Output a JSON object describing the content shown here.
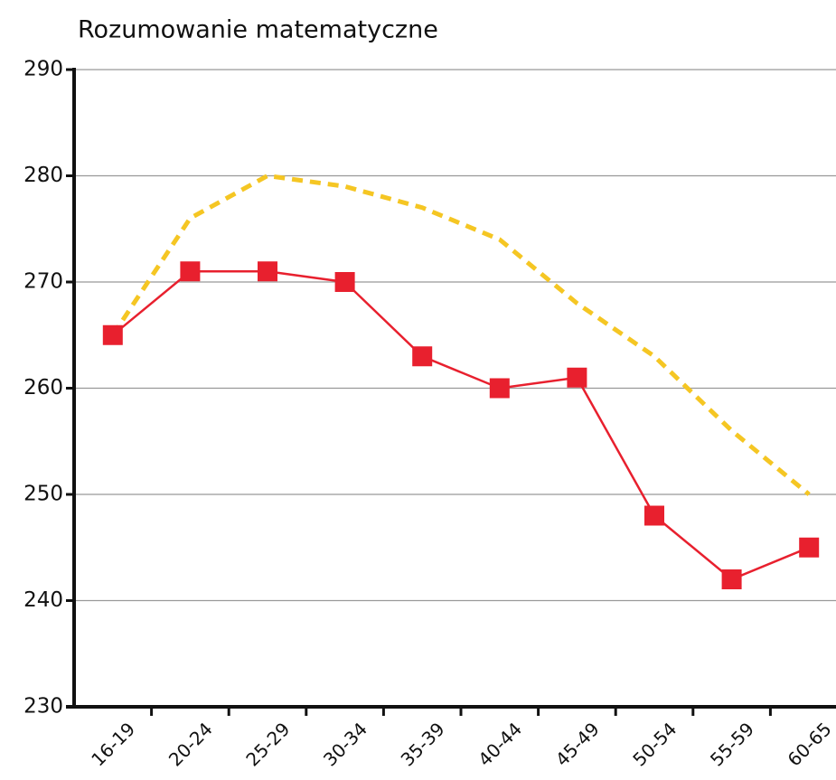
{
  "chart_data": {
    "type": "line",
    "title": "Rozumowanie matematyczne",
    "categories": [
      "16-19",
      "20-24",
      "25-29",
      "30-34",
      "35-39",
      "40-44",
      "45-49",
      "50-54",
      "55-59",
      "60-65"
    ],
    "series": [
      {
        "color": "#f5c623",
        "style": "dashed",
        "marker": "none",
        "values": [
          265,
          276,
          280,
          279,
          277,
          274,
          268,
          263,
          256,
          250
        ]
      },
      {
        "color": "#e8202e",
        "style": "solid",
        "marker": "square",
        "values": [
          265,
          271,
          271,
          270,
          263,
          260,
          261,
          248,
          242,
          245
        ]
      }
    ],
    "ylim": [
      230,
      290
    ],
    "yticks": [
      230,
      240,
      250,
      260,
      270,
      280,
      290
    ],
    "grid": true
  }
}
